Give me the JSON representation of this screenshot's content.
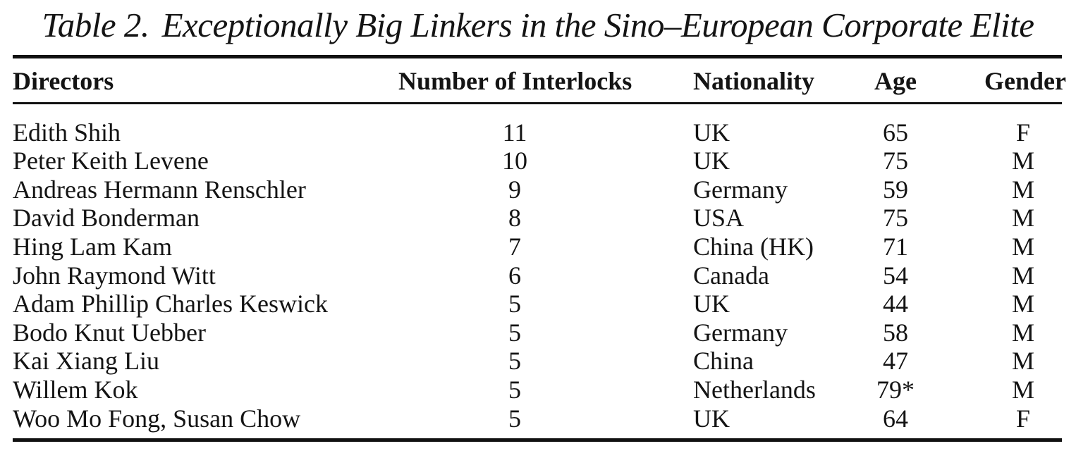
{
  "caption": {
    "label": "Table 2.",
    "title": "Exceptionally Big Linkers in the Sino–European Corporate Elite"
  },
  "table": {
    "columns": [
      "Directors",
      "Number of Interlocks",
      "Nationality",
      "Age",
      "Gender"
    ],
    "rows": [
      {
        "director": "Edith Shih",
        "interlocks": "11",
        "nationality": "UK",
        "age": "65",
        "gender": "F"
      },
      {
        "director": "Peter Keith Levene",
        "interlocks": "10",
        "nationality": "UK",
        "age": "75",
        "gender": "M"
      },
      {
        "director": "Andreas Hermann Renschler",
        "interlocks": "9",
        "nationality": "Germany",
        "age": "59",
        "gender": "M"
      },
      {
        "director": "David Bonderman",
        "interlocks": "8",
        "nationality": "USA",
        "age": "75",
        "gender": "M"
      },
      {
        "director": "Hing Lam Kam",
        "interlocks": "7",
        "nationality": "China (HK)",
        "age": "71",
        "gender": "M"
      },
      {
        "director": "John Raymond Witt",
        "interlocks": "6",
        "nationality": "Canada",
        "age": "54",
        "gender": "M"
      },
      {
        "director": "Adam Phillip Charles Keswick",
        "interlocks": "5",
        "nationality": "UK",
        "age": "44",
        "gender": "M"
      },
      {
        "director": "Bodo Knut Uebber",
        "interlocks": "5",
        "nationality": "Germany",
        "age": "58",
        "gender": "M"
      },
      {
        "director": "Kai Xiang Liu",
        "interlocks": "5",
        "nationality": "China",
        "age": "47",
        "gender": "M"
      },
      {
        "director": "Willem Kok",
        "interlocks": "5",
        "nationality": "Netherlands",
        "age": "79*",
        "gender": "M"
      },
      {
        "director": "Woo Mo Fong, Susan Chow",
        "interlocks": "5",
        "nationality": "UK",
        "age": "64",
        "gender": "F"
      }
    ]
  },
  "colors": {
    "text": "#141414",
    "rule": "#111111",
    "background": "#ffffff"
  }
}
